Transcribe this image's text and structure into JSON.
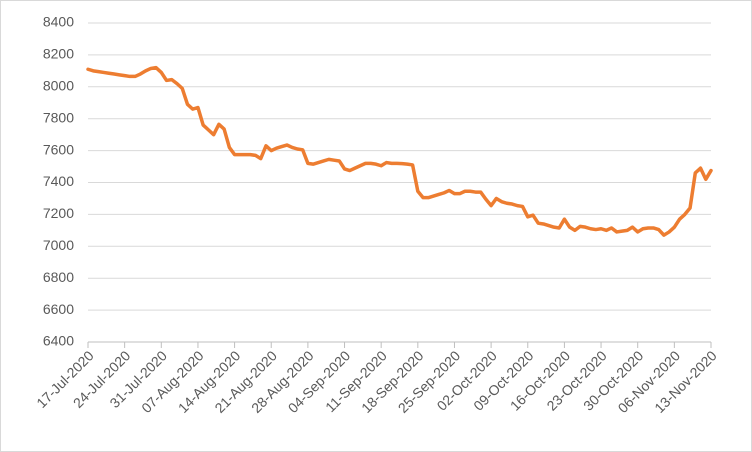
{
  "chart_data": {
    "type": "line",
    "categories": [
      "17-Jul-2020",
      null,
      null,
      null,
      null,
      null,
      null,
      "24-Jul-2020",
      null,
      null,
      null,
      null,
      null,
      null,
      "31-Jul-2020",
      null,
      null,
      null,
      null,
      null,
      null,
      "07-Aug-2020",
      null,
      null,
      null,
      null,
      null,
      null,
      "14-Aug-2020",
      null,
      null,
      null,
      null,
      null,
      null,
      "21-Aug-2020",
      null,
      null,
      null,
      null,
      null,
      null,
      "28-Aug-2020",
      null,
      null,
      null,
      null,
      null,
      null,
      "04-Sep-2020",
      null,
      null,
      null,
      null,
      null,
      null,
      "11-Sep-2020",
      null,
      null,
      null,
      null,
      null,
      null,
      "18-Sep-2020",
      null,
      null,
      null,
      null,
      null,
      null,
      "25-Sep-2020",
      null,
      null,
      null,
      null,
      null,
      null,
      "02-Oct-2020",
      null,
      null,
      null,
      null,
      null,
      null,
      "09-Oct-2020",
      null,
      null,
      null,
      null,
      null,
      null,
      "16-Oct-2020",
      null,
      null,
      null,
      null,
      null,
      null,
      "23-Oct-2020",
      null,
      null,
      null,
      null,
      null,
      null,
      "30-Oct-2020",
      null,
      null,
      null,
      null,
      null,
      null,
      "06-Nov-2020",
      null,
      null,
      null,
      null,
      null,
      null,
      "13-Nov-2020"
    ],
    "series": [
      {
        "name": null,
        "color": "#ed7d31",
        "values": [
          8110,
          8100,
          8095,
          8090,
          8085,
          8080,
          8075,
          8070,
          8065,
          8065,
          8080,
          8100,
          8115,
          8120,
          8090,
          8040,
          8045,
          8020,
          7990,
          7890,
          7860,
          7870,
          7760,
          7730,
          7700,
          7765,
          7735,
          7620,
          7575,
          7575,
          7575,
          7575,
          7570,
          7550,
          7630,
          7600,
          7615,
          7625,
          7635,
          7620,
          7610,
          7605,
          7520,
          7515,
          7525,
          7535,
          7545,
          7540,
          7535,
          7485,
          7475,
          7490,
          7505,
          7520,
          7520,
          7515,
          7505,
          7525,
          7520,
          7520,
          7518,
          7515,
          7510,
          7345,
          7305,
          7305,
          7315,
          7325,
          7335,
          7350,
          7330,
          7330,
          7345,
          7345,
          7340,
          7340,
          7295,
          7255,
          7300,
          7280,
          7270,
          7265,
          7255,
          7250,
          7185,
          7195,
          7145,
          7140,
          7130,
          7120,
          7115,
          7170,
          7120,
          7100,
          7125,
          7120,
          7110,
          7105,
          7110,
          7100,
          7115,
          7090,
          7095,
          7100,
          7120,
          7090,
          7110,
          7115,
          7115,
          7105,
          7070,
          7090,
          7120,
          7170,
          7200,
          7240,
          7460,
          7490,
          7420,
          7475
        ]
      }
    ],
    "ylim": [
      6400,
      8400
    ],
    "yticks": [
      6400,
      6600,
      6800,
      7000,
      7200,
      7400,
      7600,
      7800,
      8000,
      8200,
      8400
    ],
    "grid": true
  }
}
